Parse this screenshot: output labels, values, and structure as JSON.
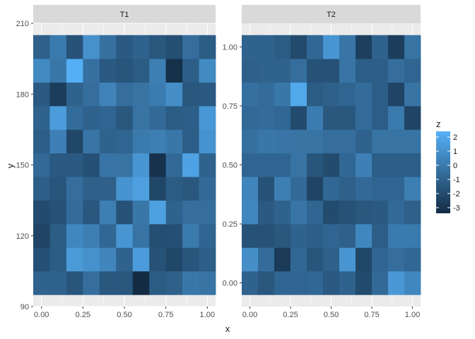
{
  "chart_data": {
    "type": "heatmap",
    "xlabel": "x",
    "ylabel": "y",
    "legend": {
      "title": "z",
      "placement": "right",
      "ticks": [
        "2",
        "1",
        "0",
        "-1",
        "-2",
        "-3"
      ],
      "tick_values": [
        2,
        1,
        0,
        -1,
        -2,
        -3
      ],
      "range": [
        -3.4,
        2.4
      ]
    },
    "colors": {
      "low": "#132B43",
      "high": "#56B1F7",
      "panel_bg": "#EBEBEB",
      "grid": "#FFFFFF",
      "strip_bg": "#D9D9D9"
    },
    "grid": true,
    "x": [
      0.0,
      0.1,
      0.2,
      0.3,
      0.4,
      0.5,
      0.6,
      0.7,
      0.8,
      0.9,
      1.0
    ],
    "x_ticks": [
      "0.00",
      "0.25",
      "0.50",
      "0.75",
      "1.00"
    ],
    "x_tick_values": [
      0,
      0.25,
      0.5,
      0.75,
      1.0
    ],
    "facets": [
      {
        "label": "T1",
        "xlim": [
          -0.05,
          1.05
        ],
        "ylim": [
          90,
          210
        ],
        "y_ticks": [
          "90",
          "120",
          "150",
          "180",
          "210"
        ],
        "y_tick_values": [
          90,
          120,
          150,
          180,
          210
        ],
        "y": [
          100,
          110,
          120,
          130,
          140,
          150,
          160,
          170,
          180,
          190,
          200
        ],
        "z": [
          [
            -1.0,
            -1.0,
            -1.6,
            -0.5,
            -1.5,
            -1.5,
            -3.4,
            -1.3,
            -1.1,
            -0.1,
            -0.3
          ],
          [
            -1.8,
            -1.3,
            1.4,
            1.0,
            0.5,
            -1.0,
            1.5,
            -1.7,
            -2.2,
            -1.6,
            -1.2
          ],
          [
            -2.3,
            -1.3,
            0.6,
            0.2,
            -0.8,
            1.2,
            -0.3,
            -1.9,
            -1.8,
            0.0,
            -0.9
          ],
          [
            -2.0,
            -1.7,
            -0.6,
            -1.5,
            0.2,
            -1.7,
            -0.1,
            1.7,
            -1.0,
            -0.5,
            -0.5
          ],
          [
            -1.2,
            -1.6,
            -0.5,
            -1.1,
            -1.1,
            1.1,
            1.6,
            -2.2,
            -1.3,
            -1.5,
            -0.7
          ],
          [
            -0.7,
            -1.4,
            -1.4,
            -1.8,
            -0.2,
            -0.3,
            1.2,
            -3.1,
            -0.7,
            1.8,
            -1.0
          ],
          [
            -1.2,
            0.3,
            -2.2,
            -0.2,
            -1.0,
            -0.9,
            0.0,
            0.2,
            -0.1,
            -1.2,
            1.1
          ],
          [
            -1.0,
            1.5,
            -0.6,
            -1.0,
            -0.9,
            -1.5,
            -0.3,
            -0.7,
            -1.3,
            -1.2,
            1.3
          ],
          [
            -1.4,
            -2.6,
            -1.0,
            -0.5,
            0.4,
            -0.5,
            -0.3,
            0.1,
            0.9,
            -1.5,
            -1.4
          ],
          [
            0.7,
            -0.1,
            2.3,
            -0.4,
            -1.4,
            -1.6,
            -1.3,
            0.2,
            -3.2,
            -1.2,
            0.7
          ],
          [
            -1.1,
            0.0,
            -1.7,
            1.0,
            -0.4,
            -1.4,
            -1.0,
            -1.5,
            -1.9,
            -0.5,
            -1.3
          ]
        ]
      },
      {
        "label": "T2",
        "xlim": [
          -0.05,
          1.05
        ],
        "ylim": [
          -0.1,
          1.1
        ],
        "y_ticks": [
          "0.00",
          "0.25",
          "0.50",
          "0.75",
          "1.00"
        ],
        "y_tick_values": [
          0,
          0.25,
          0.5,
          0.75,
          1.0
        ],
        "y": [
          0.0,
          0.1,
          0.2,
          0.3,
          0.4,
          0.5,
          0.6,
          0.7,
          0.8,
          0.9,
          1.0
        ],
        "z": [
          [
            -1.0,
            -1.5,
            -0.9,
            -0.9,
            -0.8,
            -1.4,
            -1.0,
            -2.0,
            -0.7,
            1.3,
            0.6
          ],
          [
            0.9,
            -0.6,
            -2.7,
            -0.8,
            -1.6,
            -1.1,
            1.2,
            -2.2,
            -0.9,
            -0.5,
            -0.8
          ],
          [
            -1.7,
            -1.7,
            -1.5,
            -1.0,
            -1.2,
            -0.9,
            -1.1,
            0.6,
            -1.2,
            0.0,
            0.0
          ],
          [
            0.6,
            -1.4,
            -1.0,
            -0.2,
            -0.9,
            -2.0,
            -1.7,
            -1.5,
            -1.4,
            -0.7,
            -1.1
          ],
          [
            0.5,
            -1.7,
            0.2,
            -0.7,
            -2.3,
            -0.8,
            -1.1,
            -0.7,
            -0.9,
            -0.9,
            0.2
          ],
          [
            -0.9,
            -0.9,
            -0.9,
            -0.3,
            -1.6,
            -2.0,
            -0.8,
            0.3,
            -1.2,
            -1.2,
            -1.2
          ],
          [
            -0.4,
            -0.1,
            -0.2,
            -0.3,
            -0.3,
            -0.5,
            -0.5,
            -1.0,
            -0.3,
            -0.3,
            -0.3
          ],
          [
            -0.7,
            -0.6,
            -0.8,
            -2.0,
            0.1,
            -1.5,
            -1.5,
            -0.6,
            -1.2,
            0.0,
            -2.3
          ],
          [
            -0.4,
            -0.6,
            -0.1,
            2.0,
            -1.3,
            -1.1,
            -0.9,
            -0.6,
            -1.2,
            -2.3,
            -0.3
          ],
          [
            -1.1,
            -1.0,
            -1.0,
            -0.5,
            -1.7,
            -1.7,
            -0.2,
            -1.2,
            -1.2,
            -0.5,
            -0.9
          ],
          [
            -1.0,
            -1.0,
            -1.3,
            -2.0,
            -0.8,
            1.2,
            -0.2,
            -2.5,
            -1.0,
            -2.6,
            -0.3
          ]
        ]
      }
    ]
  }
}
